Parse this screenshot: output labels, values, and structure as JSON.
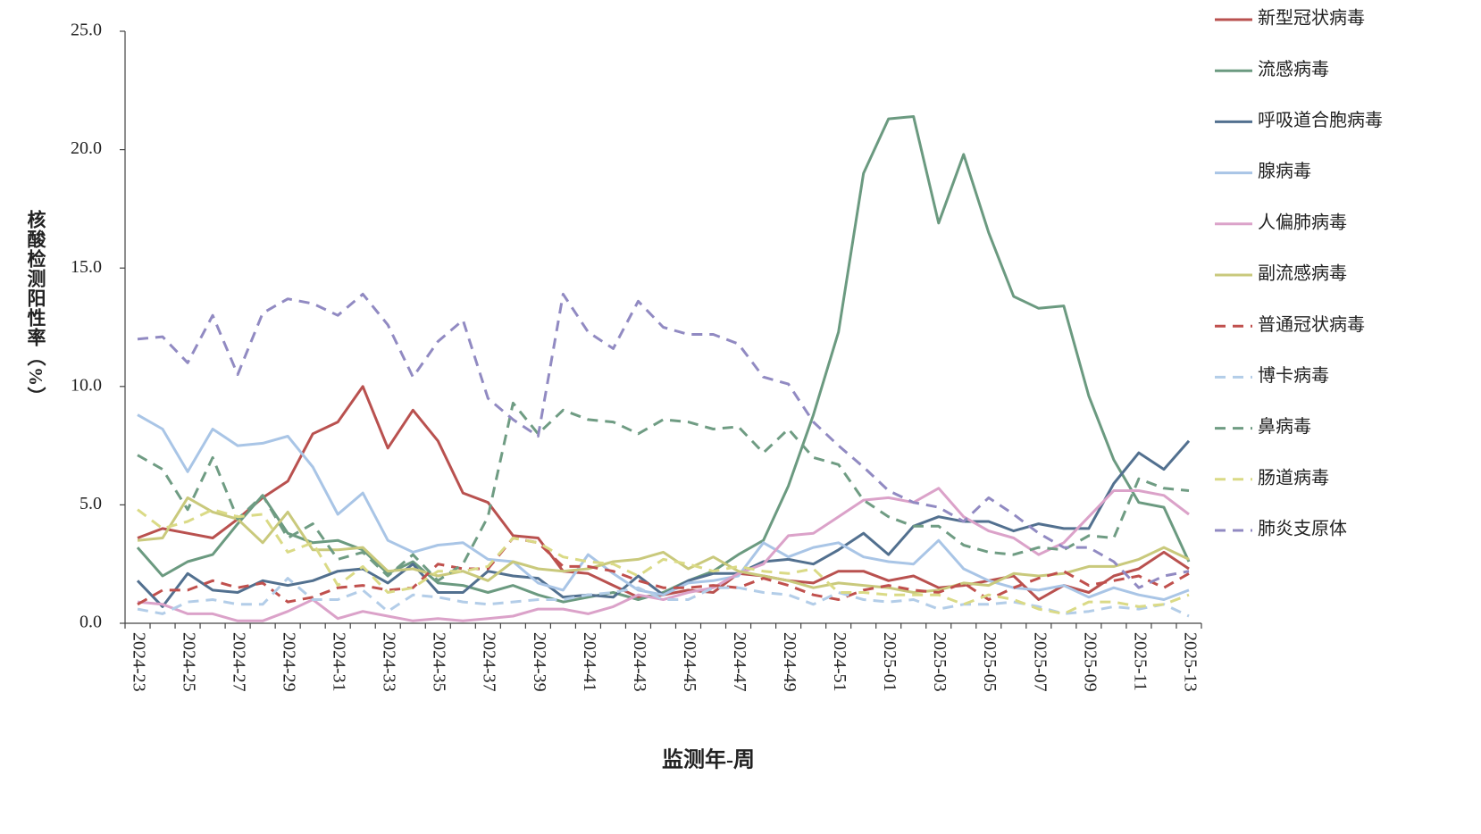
{
  "chart_data": {
    "type": "line",
    "x_label": "监测年-周",
    "y_label": "核酸检测阳性率（%）",
    "categories": [
      "2024-23",
      null,
      "2024-25",
      null,
      "2024-27",
      null,
      "2024-29",
      null,
      "2024-31",
      null,
      "2024-33",
      null,
      "2024-35",
      null,
      "2024-37",
      null,
      "2024-39",
      null,
      "2024-41",
      null,
      "2024-43",
      null,
      "2024-45",
      null,
      "2024-47",
      null,
      "2024-49",
      null,
      "2024-51",
      null,
      "2025-01",
      null,
      "2025-03",
      null,
      "2025-05",
      null,
      "2025-07",
      null,
      "2025-09",
      null,
      "2025-11",
      null,
      "2025-13"
    ],
    "ylim": [
      0,
      25
    ],
    "yticks": [
      {
        "value": 0,
        "label": "0.0"
      },
      {
        "value": 5,
        "label": "5.0"
      },
      {
        "value": 10,
        "label": "10.0"
      },
      {
        "value": 15,
        "label": "15.0"
      },
      {
        "value": 20,
        "label": "20.0"
      },
      {
        "value": 25,
        "label": "25.0"
      }
    ],
    "legend": "right",
    "series": [
      {
        "name": "新型冠状病毒",
        "color": "#b9514f",
        "dashed": false,
        "values": [
          3.6,
          4.0,
          3.8,
          3.6,
          4.4,
          5.3,
          6.0,
          8.0,
          8.5,
          10.0,
          7.4,
          9.0,
          7.7,
          5.5,
          5.1,
          3.7,
          3.6,
          2.2,
          2.1,
          1.6,
          1.1,
          1.2,
          1.4,
          1.3,
          2.1,
          2.0,
          1.8,
          1.7,
          2.2,
          2.2,
          1.8,
          2.0,
          1.5,
          1.6,
          1.8,
          2.0,
          1.0,
          1.6,
          1.3,
          2.0,
          2.3,
          3.0,
          2.3
        ]
      },
      {
        "name": "流感病毒",
        "color": "#6b9a80",
        "dashed": false,
        "values": [
          3.2,
          2.0,
          2.6,
          2.9,
          4.2,
          5.4,
          3.8,
          3.4,
          3.5,
          3.1,
          2.1,
          2.6,
          1.7,
          1.6,
          1.3,
          1.6,
          1.2,
          0.9,
          1.1,
          1.3,
          1.0,
          1.3,
          1.8,
          2.2,
          2.9,
          3.5,
          5.8,
          8.8,
          12.3,
          19.0,
          21.3,
          21.4,
          16.9,
          19.8,
          16.5,
          13.8,
          13.3,
          13.4,
          9.6,
          6.9,
          5.1,
          4.9,
          2.6
        ]
      },
      {
        "name": "呼吸道合胞病毒",
        "color": "#52708f",
        "dashed": false,
        "values": [
          1.8,
          0.7,
          2.1,
          1.4,
          1.3,
          1.8,
          1.6,
          1.8,
          2.2,
          2.3,
          1.7,
          2.5,
          1.3,
          1.3,
          2.2,
          2.0,
          1.9,
          1.1,
          1.2,
          1.1,
          2.0,
          1.2,
          1.8,
          2.1,
          2.1,
          2.6,
          2.7,
          2.5,
          3.1,
          3.8,
          2.9,
          4.1,
          4.5,
          4.3,
          4.3,
          3.9,
          4.2,
          4.0,
          4.0,
          5.9,
          7.2,
          6.5,
          7.7
        ]
      },
      {
        "name": "腺病毒",
        "color": "#a9c5e6",
        "dashed": false,
        "values": [
          8.8,
          8.2,
          6.4,
          8.2,
          7.5,
          7.6,
          7.9,
          6.6,
          4.6,
          5.5,
          3.5,
          3.0,
          3.3,
          3.4,
          2.7,
          2.6,
          1.7,
          1.4,
          2.9,
          2.1,
          1.4,
          1.2,
          1.7,
          1.8,
          2.0,
          3.4,
          2.8,
          3.2,
          3.4,
          2.8,
          2.6,
          2.5,
          3.5,
          2.3,
          1.8,
          1.5,
          1.4,
          1.6,
          1.1,
          1.5,
          1.2,
          1.0,
          1.4
        ]
      },
      {
        "name": "人偏肺病毒",
        "color": "#dba2c9",
        "dashed": false,
        "values": [
          0.9,
          0.8,
          0.4,
          0.4,
          0.1,
          0.1,
          0.5,
          1.0,
          0.2,
          0.5,
          0.3,
          0.1,
          0.2,
          0.1,
          0.2,
          0.3,
          0.6,
          0.6,
          0.4,
          0.7,
          1.2,
          1.0,
          1.3,
          1.5,
          2.1,
          2.5,
          3.7,
          3.8,
          4.5,
          5.2,
          5.3,
          5.1,
          5.7,
          4.5,
          3.9,
          3.6,
          2.9,
          3.4,
          4.5,
          5.6,
          5.6,
          5.4,
          4.6
        ]
      },
      {
        "name": "副流感病毒",
        "color": "#c9c97c",
        "dashed": false,
        "values": [
          3.5,
          3.6,
          5.3,
          4.7,
          4.4,
          3.4,
          4.7,
          3.1,
          3.1,
          3.2,
          2.2,
          2.3,
          2.0,
          2.2,
          1.8,
          2.6,
          2.3,
          2.2,
          2.3,
          2.6,
          2.7,
          3.0,
          2.3,
          2.8,
          2.2,
          2.0,
          1.8,
          1.5,
          1.7,
          1.6,
          1.5,
          1.3,
          1.4,
          1.7,
          1.6,
          2.1,
          2.0,
          2.1,
          2.4,
          2.4,
          2.7,
          3.2,
          2.7
        ]
      },
      {
        "name": "普通冠状病毒",
        "color": "#c0504d",
        "dashed": true,
        "values": [
          0.8,
          1.4,
          1.4,
          1.8,
          1.5,
          1.7,
          0.9,
          1.1,
          1.5,
          1.6,
          1.4,
          1.5,
          2.5,
          2.3,
          2.3,
          3.6,
          3.4,
          2.4,
          2.4,
          2.2,
          1.8,
          1.5,
          1.5,
          1.6,
          1.5,
          1.9,
          1.6,
          1.2,
          1.0,
          1.4,
          1.6,
          1.4,
          1.3,
          1.7,
          1.0,
          1.5,
          1.9,
          2.2,
          1.6,
          1.8,
          2.0,
          1.5,
          2.1
        ]
      },
      {
        "name": "博卡病毒",
        "color": "#b3cde8",
        "dashed": true,
        "values": [
          0.6,
          0.4,
          0.9,
          1.0,
          0.8,
          0.8,
          1.9,
          1.0,
          1.0,
          1.4,
          0.5,
          1.2,
          1.1,
          0.9,
          0.8,
          0.9,
          1.0,
          1.0,
          1.2,
          1.3,
          1.5,
          1.0,
          1.0,
          1.5,
          1.5,
          1.3,
          1.2,
          0.8,
          1.3,
          1.0,
          0.9,
          1.0,
          0.6,
          0.8,
          0.8,
          0.9,
          0.7,
          0.4,
          0.5,
          0.7,
          0.6,
          0.8,
          0.3
        ]
      },
      {
        "name": "鼻病毒",
        "color": "#6f9c83",
        "dashed": true,
        "values": [
          7.1,
          6.5,
          4.8,
          7.0,
          4.4,
          5.4,
          3.6,
          4.2,
          2.7,
          3.0,
          2.0,
          2.9,
          1.8,
          2.5,
          4.5,
          9.3,
          8.0,
          9.0,
          8.6,
          8.5,
          8.0,
          8.6,
          8.5,
          8.2,
          8.3,
          7.2,
          8.2,
          7.0,
          6.7,
          5.2,
          4.5,
          4.1,
          4.1,
          3.3,
          3.0,
          2.9,
          3.2,
          3.1,
          3.7,
          3.6,
          6.1,
          5.7,
          5.6
        ]
      },
      {
        "name": "肠道病毒",
        "color": "#dada86",
        "dashed": true,
        "values": [
          4.8,
          4.0,
          4.3,
          4.8,
          4.5,
          4.6,
          3.0,
          3.4,
          1.6,
          2.4,
          1.3,
          1.5,
          2.2,
          2.2,
          2.4,
          3.6,
          3.4,
          2.8,
          2.6,
          2.5,
          2.0,
          2.7,
          2.5,
          2.2,
          2.4,
          2.2,
          2.1,
          2.3,
          1.3,
          1.3,
          1.2,
          1.2,
          1.2,
          0.8,
          1.2,
          1.0,
          0.6,
          0.4,
          0.9,
          0.9,
          0.7,
          0.8,
          1.2
        ]
      },
      {
        "name": "肺炎支原体",
        "color": "#918ac2",
        "dashed": true,
        "values": [
          12.0,
          12.1,
          11.0,
          13.0,
          10.5,
          13.1,
          13.7,
          13.5,
          13.0,
          13.9,
          12.6,
          10.4,
          11.9,
          12.8,
          9.5,
          8.6,
          7.9,
          13.9,
          12.3,
          11.6,
          13.6,
          12.5,
          12.2,
          12.2,
          11.8,
          10.4,
          10.1,
          8.5,
          7.5,
          6.6,
          5.6,
          5.1,
          4.9,
          4.3,
          5.3,
          4.6,
          3.8,
          3.2,
          3.2,
          2.6,
          1.5,
          2.0,
          2.2
        ]
      }
    ]
  }
}
